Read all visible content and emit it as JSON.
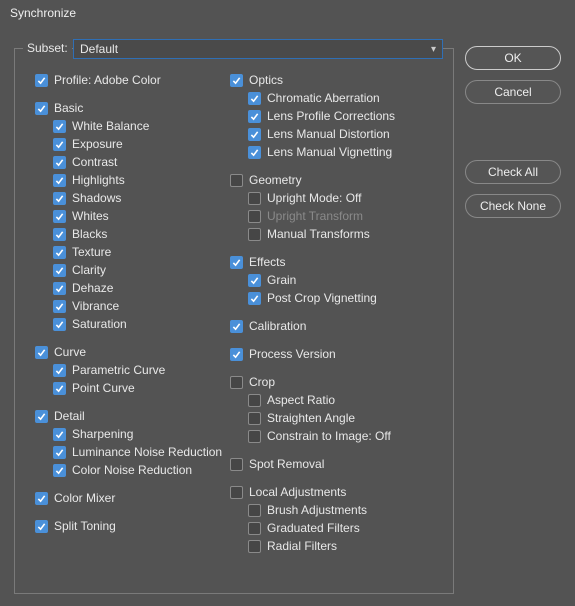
{
  "window_title": "Synchronize",
  "subset": {
    "label": "Subset:",
    "value": "Default"
  },
  "buttons": {
    "ok": "OK",
    "cancel": "Cancel",
    "check_all": "Check All",
    "check_none": "Check None"
  },
  "left": [
    {
      "type": "item",
      "label": "Profile: Adobe Color",
      "checked": true,
      "indent": 0,
      "name": "profile"
    },
    {
      "type": "spacer"
    },
    {
      "type": "item",
      "label": "Basic",
      "checked": true,
      "indent": 0,
      "name": "basic"
    },
    {
      "type": "item",
      "label": "White Balance",
      "checked": true,
      "indent": 1,
      "name": "white-balance"
    },
    {
      "type": "item",
      "label": "Exposure",
      "checked": true,
      "indent": 1,
      "name": "exposure"
    },
    {
      "type": "item",
      "label": "Contrast",
      "checked": true,
      "indent": 1,
      "name": "contrast"
    },
    {
      "type": "item",
      "label": "Highlights",
      "checked": true,
      "indent": 1,
      "name": "highlights"
    },
    {
      "type": "item",
      "label": "Shadows",
      "checked": true,
      "indent": 1,
      "name": "shadows"
    },
    {
      "type": "item",
      "label": "Whites",
      "checked": true,
      "indent": 1,
      "name": "whites"
    },
    {
      "type": "item",
      "label": "Blacks",
      "checked": true,
      "indent": 1,
      "name": "blacks"
    },
    {
      "type": "item",
      "label": "Texture",
      "checked": true,
      "indent": 1,
      "name": "texture"
    },
    {
      "type": "item",
      "label": "Clarity",
      "checked": true,
      "indent": 1,
      "name": "clarity"
    },
    {
      "type": "item",
      "label": "Dehaze",
      "checked": true,
      "indent": 1,
      "name": "dehaze"
    },
    {
      "type": "item",
      "label": "Vibrance",
      "checked": true,
      "indent": 1,
      "name": "vibrance"
    },
    {
      "type": "item",
      "label": "Saturation",
      "checked": true,
      "indent": 1,
      "name": "saturation"
    },
    {
      "type": "spacer"
    },
    {
      "type": "item",
      "label": "Curve",
      "checked": true,
      "indent": 0,
      "name": "curve"
    },
    {
      "type": "item",
      "label": "Parametric Curve",
      "checked": true,
      "indent": 1,
      "name": "parametric-curve"
    },
    {
      "type": "item",
      "label": "Point Curve",
      "checked": true,
      "indent": 1,
      "name": "point-curve"
    },
    {
      "type": "spacer"
    },
    {
      "type": "item",
      "label": "Detail",
      "checked": true,
      "indent": 0,
      "name": "detail"
    },
    {
      "type": "item",
      "label": "Sharpening",
      "checked": true,
      "indent": 1,
      "name": "sharpening"
    },
    {
      "type": "item",
      "label": "Luminance Noise Reduction",
      "checked": true,
      "indent": 1,
      "name": "luminance-noise-reduction"
    },
    {
      "type": "item",
      "label": "Color Noise Reduction",
      "checked": true,
      "indent": 1,
      "name": "color-noise-reduction"
    },
    {
      "type": "spacer"
    },
    {
      "type": "item",
      "label": "Color Mixer",
      "checked": true,
      "indent": 0,
      "name": "color-mixer"
    },
    {
      "type": "spacer"
    },
    {
      "type": "item",
      "label": "Split Toning",
      "checked": true,
      "indent": 0,
      "name": "split-toning"
    }
  ],
  "right": [
    {
      "type": "item",
      "label": "Optics",
      "checked": true,
      "indent": 0,
      "name": "optics"
    },
    {
      "type": "item",
      "label": "Chromatic Aberration",
      "checked": true,
      "indent": 1,
      "name": "chromatic-aberration"
    },
    {
      "type": "item",
      "label": "Lens Profile Corrections",
      "checked": true,
      "indent": 1,
      "name": "lens-profile-corrections"
    },
    {
      "type": "item",
      "label": "Lens Manual Distortion",
      "checked": true,
      "indent": 1,
      "name": "lens-manual-distortion"
    },
    {
      "type": "item",
      "label": "Lens Manual Vignetting",
      "checked": true,
      "indent": 1,
      "name": "lens-manual-vignetting"
    },
    {
      "type": "spacer"
    },
    {
      "type": "item",
      "label": "Geometry",
      "checked": false,
      "indent": 0,
      "name": "geometry"
    },
    {
      "type": "item",
      "label": "Upright Mode: Off",
      "checked": false,
      "indent": 1,
      "name": "upright-mode"
    },
    {
      "type": "item",
      "label": "Upright Transform",
      "checked": false,
      "indent": 1,
      "name": "upright-transform",
      "disabled": true
    },
    {
      "type": "item",
      "label": "Manual Transforms",
      "checked": false,
      "indent": 1,
      "name": "manual-transforms"
    },
    {
      "type": "spacer"
    },
    {
      "type": "item",
      "label": "Effects",
      "checked": true,
      "indent": 0,
      "name": "effects"
    },
    {
      "type": "item",
      "label": "Grain",
      "checked": true,
      "indent": 1,
      "name": "grain"
    },
    {
      "type": "item",
      "label": "Post Crop Vignetting",
      "checked": true,
      "indent": 1,
      "name": "post-crop-vignetting"
    },
    {
      "type": "spacer"
    },
    {
      "type": "item",
      "label": "Calibration",
      "checked": true,
      "indent": 0,
      "name": "calibration"
    },
    {
      "type": "spacer"
    },
    {
      "type": "item",
      "label": "Process Version",
      "checked": true,
      "indent": 0,
      "name": "process-version"
    },
    {
      "type": "spacer"
    },
    {
      "type": "item",
      "label": "Crop",
      "checked": false,
      "indent": 0,
      "name": "crop"
    },
    {
      "type": "item",
      "label": "Aspect Ratio",
      "checked": false,
      "indent": 1,
      "name": "aspect-ratio"
    },
    {
      "type": "item",
      "label": "Straighten Angle",
      "checked": false,
      "indent": 1,
      "name": "straighten-angle"
    },
    {
      "type": "item",
      "label": "Constrain to Image: Off",
      "checked": false,
      "indent": 1,
      "name": "constrain-to-image"
    },
    {
      "type": "spacer"
    },
    {
      "type": "item",
      "label": "Spot Removal",
      "checked": false,
      "indent": 0,
      "name": "spot-removal"
    },
    {
      "type": "spacer"
    },
    {
      "type": "item",
      "label": "Local Adjustments",
      "checked": false,
      "indent": 0,
      "name": "local-adjustments"
    },
    {
      "type": "item",
      "label": "Brush Adjustments",
      "checked": false,
      "indent": 1,
      "name": "brush-adjustments"
    },
    {
      "type": "item",
      "label": "Graduated Filters",
      "checked": false,
      "indent": 1,
      "name": "graduated-filters"
    },
    {
      "type": "item",
      "label": "Radial Filters",
      "checked": false,
      "indent": 1,
      "name": "radial-filters"
    }
  ]
}
